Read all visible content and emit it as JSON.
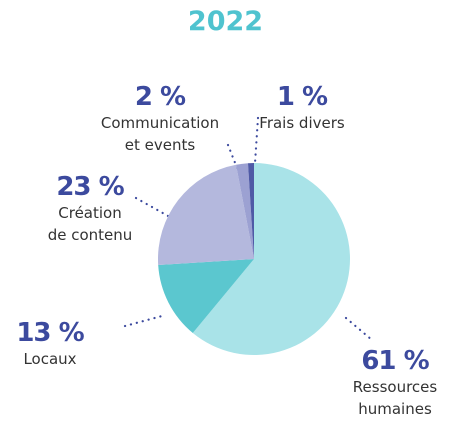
{
  "chart_data": {
    "type": "pie",
    "title": "2022",
    "categories": [
      "Ressources humaines",
      "Locaux",
      "Création de contenu",
      "Communication et events",
      "Frais divers"
    ],
    "values": [
      61,
      13,
      23,
      2,
      1
    ],
    "value_labels": [
      "61 %",
      "13 %",
      "23 %",
      "2 %",
      "1 %"
    ],
    "colors": [
      "#a9e3e8",
      "#5bc7cf",
      "#b4b8dd",
      "#9ca1d2",
      "#4f5aa6"
    ]
  }
}
